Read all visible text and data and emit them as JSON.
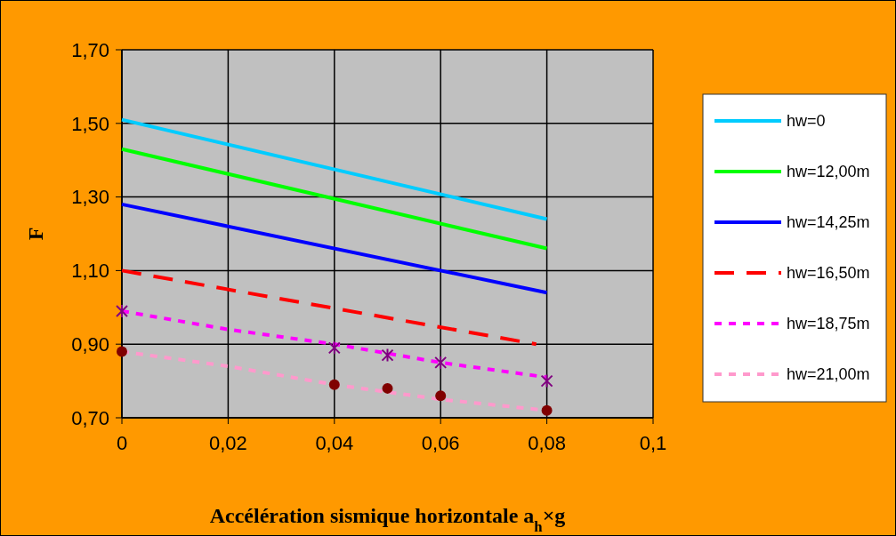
{
  "chart_data": {
    "type": "line",
    "xlabel": "Accélération sismique horizontale a$_{h}$×g",
    "ylabel": "F",
    "xlim": [
      0,
      0.1
    ],
    "xticks": [
      0,
      {
        "value": 0.02,
        "label": "0,02"
      },
      {
        "value": 0.04,
        "label": "0,04"
      },
      {
        "value": 0.06,
        "label": "0,06"
      },
      {
        "value": 0.08,
        "label": "0,08"
      },
      {
        "value": 0.1,
        "label": "0,1"
      }
    ],
    "ylim": [
      0.7,
      1.7
    ],
    "yticks": [
      {
        "value": 0.7,
        "label": "0,70"
      },
      {
        "value": 0.9,
        "label": "0,90"
      },
      {
        "value": 1.1,
        "label": "1,10"
      },
      {
        "value": 1.3,
        "label": "1,30"
      },
      {
        "value": 1.5,
        "label": "1,50"
      },
      {
        "value": 1.7,
        "label": "1,70"
      }
    ],
    "grid": true,
    "legend": "right",
    "series": [
      {
        "name": "hw=0",
        "color": "#00ccff",
        "line_style": "solid",
        "x": [
          0,
          0.08
        ],
        "values": [
          1.51,
          1.24
        ]
      },
      {
        "name": "hw=12,00m",
        "color": "#00ff00",
        "line_style": "solid",
        "x": [
          0,
          0.08
        ],
        "values": [
          1.43,
          1.16
        ]
      },
      {
        "name": "hw=14,25m",
        "color": "#0000ff",
        "line_style": "solid",
        "x": [
          0,
          0.08
        ],
        "values": [
          1.28,
          1.04
        ]
      },
      {
        "name": "hw=16,50m",
        "color": "#ff0000",
        "line_style": "dashed",
        "x": [
          0,
          0.078
        ],
        "values": [
          1.1,
          0.9
        ]
      },
      {
        "name": "hw=18,75m",
        "color": "#ff00ff",
        "line_style": "dotted",
        "x": [
          0,
          0.02,
          0.04,
          0.06,
          0.08
        ],
        "values": [
          0.99,
          0.94,
          0.9,
          0.85,
          0.81
        ]
      },
      {
        "name": "hw=21,00m",
        "color": "#ff99cc",
        "line_style": "dotted",
        "x": [
          0,
          0.02,
          0.04,
          0.06,
          0.08
        ],
        "values": [
          0.88,
          0.84,
          0.79,
          0.75,
          0.72
        ]
      },
      {
        "type": "scatter",
        "marker": "cross",
        "color": "#800080",
        "x": [
          0,
          0.04,
          0.05,
          0.06,
          0.08
        ],
        "values": [
          0.99,
          0.89,
          0.87,
          0.85,
          0.8
        ]
      },
      {
        "type": "scatter",
        "marker": "circle",
        "color": "#800000",
        "x": [
          0,
          0.04,
          0.05,
          0.06,
          0.08
        ],
        "values": [
          0.88,
          0.79,
          0.78,
          0.76,
          0.72
        ]
      }
    ]
  }
}
